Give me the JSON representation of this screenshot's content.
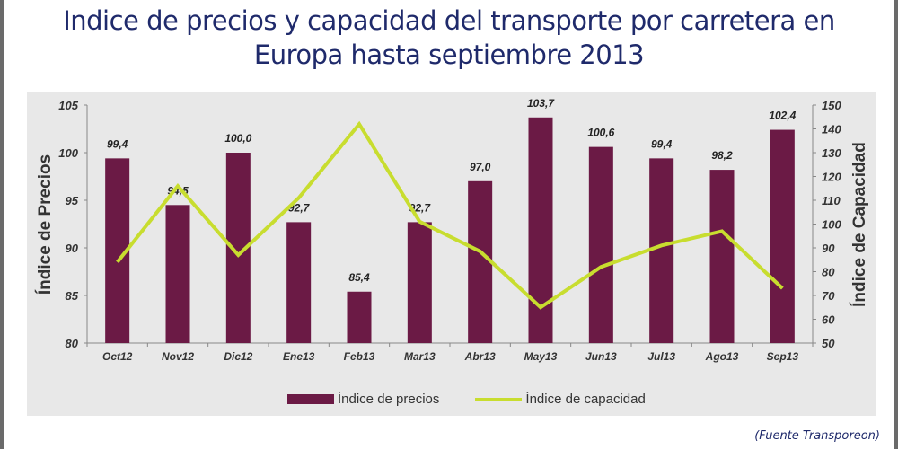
{
  "title": {
    "line1": "Indice de precios y capacidad del transporte por carretera en",
    "line2": "Europa hasta septiembre 2013"
  },
  "source": "(Fuente Transporeon)",
  "colors": {
    "bar": "#6b1a45",
    "line": "#c8dd2f",
    "title": "#1f2a6b"
  },
  "chart_data": {
    "type": "bar",
    "title": "Indice de precios y capacidad del transporte por carretera en Europa hasta septiembre 2013",
    "categories": [
      "Oct12",
      "Nov12",
      "Dic12",
      "Ene13",
      "Feb13",
      "Mar13",
      "Abr13",
      "May13",
      "Jun13",
      "Jul13",
      "Ago13",
      "Sep13"
    ],
    "series": [
      {
        "name": "Índice de precios",
        "type": "bar",
        "axis": "left",
        "values": [
          99.4,
          94.5,
          100.0,
          92.7,
          85.4,
          92.7,
          97.0,
          103.7,
          100.6,
          99.4,
          98.2,
          102.4
        ],
        "labels": [
          "99,4",
          "94,5",
          "100,0",
          "92,7",
          "85,4",
          "92,7",
          "97,0",
          "103,7",
          "100,6",
          "99,4",
          "98,2",
          "102,4"
        ]
      },
      {
        "name": "Índice de capacidad",
        "type": "line",
        "axis": "right",
        "values": [
          84,
          116,
          87,
          111,
          142,
          101,
          88.5,
          65,
          82,
          91,
          97,
          73
        ]
      }
    ],
    "ylabel": "Índice de Precios",
    "y2label": "Índice de Capacidad",
    "ylim": [
      80,
      105
    ],
    "yticks": [
      "80",
      "85",
      "90",
      "95",
      "100",
      "105"
    ],
    "y2lim": [
      50,
      150
    ],
    "y2ticks": [
      "50",
      "60",
      "70",
      "80",
      "90",
      "100",
      "110",
      "120",
      "130",
      "140",
      "150"
    ],
    "grid": false,
    "legend": "bottom"
  }
}
